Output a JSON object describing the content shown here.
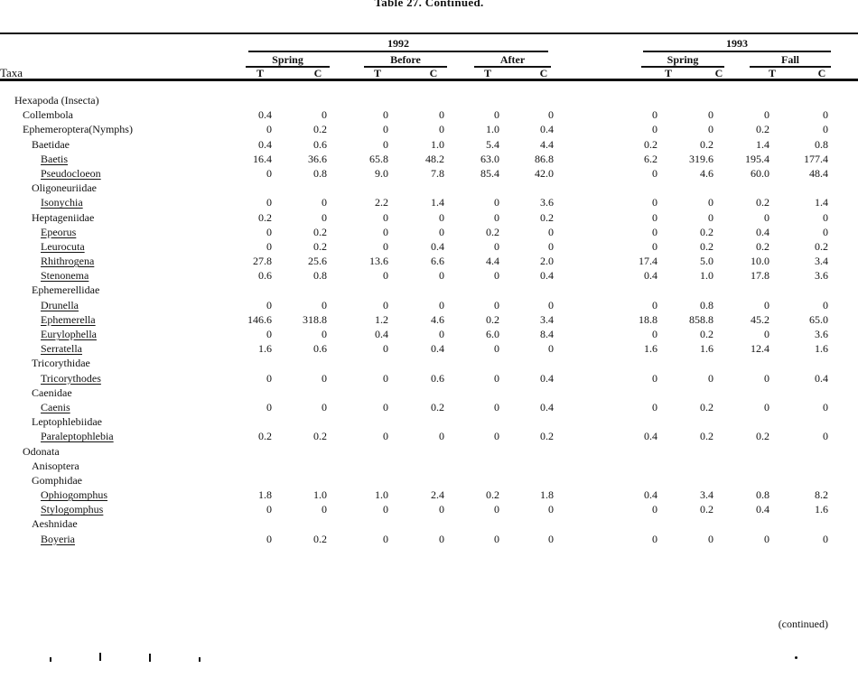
{
  "title": "Table 27.  Continued.",
  "footer_note": "(continued)",
  "colors": {
    "text": "#111111",
    "background": "#ffffff",
    "rule": "#111111"
  },
  "header": {
    "taxa_label": "Taxa",
    "years": [
      {
        "label": "1992",
        "seasons": [
          {
            "label": "Spring"
          },
          {
            "label": "Before"
          },
          {
            "label": "After"
          }
        ]
      },
      {
        "label": "1993",
        "seasons": [
          {
            "label": "Spring"
          },
          {
            "label": "Fall"
          }
        ]
      }
    ],
    "subcol_label_t": "T",
    "subcol_label_c": "C"
  },
  "table": {
    "rows": [
      {
        "name": "Hexapoda (Insecta)",
        "indent": 0,
        "underline": false,
        "values": [
          "",
          "",
          "",
          "",
          "",
          "",
          "",
          "",
          "",
          ""
        ]
      },
      {
        "name": "Collembola",
        "indent": 1,
        "underline": false,
        "values": [
          "0.4",
          "0",
          "0",
          "0",
          "0",
          "0",
          "0",
          "0",
          "0",
          "0"
        ]
      },
      {
        "name": "Ephemeroptera(Nymphs)",
        "indent": 1,
        "underline": false,
        "values": [
          "0",
          "0.2",
          "0",
          "0",
          "1.0",
          "0.4",
          "0",
          "0",
          "0.2",
          "0"
        ]
      },
      {
        "name": "Baetidae",
        "indent": 2,
        "underline": false,
        "values": [
          "0.4",
          "0.6",
          "0",
          "1.0",
          "5.4",
          "4.4",
          "0.2",
          "0.2",
          "1.4",
          "0.8"
        ]
      },
      {
        "name": "Baetis",
        "indent": 3,
        "underline": true,
        "values": [
          "16.4",
          "36.6",
          "65.8",
          "48.2",
          "63.0",
          "86.8",
          "6.2",
          "319.6",
          "195.4",
          "177.4"
        ]
      },
      {
        "name": "Pseudocloeon",
        "indent": 3,
        "underline": true,
        "values": [
          "0",
          "0.8",
          "9.0",
          "7.8",
          "85.4",
          "42.0",
          "0",
          "4.6",
          "60.0",
          "48.4"
        ]
      },
      {
        "name": "Oligoneuriidae",
        "indent": 2,
        "underline": false,
        "values": [
          "",
          "",
          "",
          "",
          "",
          "",
          "",
          "",
          "",
          ""
        ]
      },
      {
        "name": "Isonychia",
        "indent": 3,
        "underline": true,
        "values": [
          "0",
          "0",
          "2.2",
          "1.4",
          "0",
          "3.6",
          "0",
          "0",
          "0.2",
          "1.4"
        ]
      },
      {
        "name": "Heptageniidae",
        "indent": 2,
        "underline": false,
        "values": [
          "0.2",
          "0",
          "0",
          "0",
          "0",
          "0.2",
          "0",
          "0",
          "0",
          "0"
        ]
      },
      {
        "name": "Epeorus",
        "indent": 3,
        "underline": true,
        "values": [
          "0",
          "0.2",
          "0",
          "0",
          "0.2",
          "0",
          "0",
          "0.2",
          "0.4",
          "0"
        ]
      },
      {
        "name": "Leurocuta",
        "indent": 3,
        "underline": true,
        "values": [
          "0",
          "0.2",
          "0",
          "0.4",
          "0",
          "0",
          "0",
          "0.2",
          "0.2",
          "0.2"
        ]
      },
      {
        "name": "Rhithrogena",
        "indent": 3,
        "underline": true,
        "values": [
          "27.8",
          "25.6",
          "13.6",
          "6.6",
          "4.4",
          "2.0",
          "17.4",
          "5.0",
          "10.0",
          "3.4"
        ]
      },
      {
        "name": "Stenonema",
        "indent": 3,
        "underline": true,
        "values": [
          "0.6",
          "0.8",
          "0",
          "0",
          "0",
          "0.4",
          "0.4",
          "1.0",
          "17.8",
          "3.6"
        ]
      },
      {
        "name": "Ephemerellidae",
        "indent": 2,
        "underline": false,
        "values": [
          "",
          "",
          "",
          "",
          "",
          "",
          "",
          "",
          "",
          ""
        ]
      },
      {
        "name": "Drunella",
        "indent": 3,
        "underline": true,
        "values": [
          "0",
          "0",
          "0",
          "0",
          "0",
          "0",
          "0",
          "0.8",
          "0",
          "0"
        ]
      },
      {
        "name": "Ephemerella",
        "indent": 3,
        "underline": true,
        "values": [
          "146.6",
          "318.8",
          "1.2",
          "4.6",
          "0.2",
          "3.4",
          "18.8",
          "858.8",
          "45.2",
          "65.0"
        ]
      },
      {
        "name": "Eurylophella",
        "indent": 3,
        "underline": true,
        "values": [
          "0",
          "0",
          "0.4",
          "0",
          "6.0",
          "8.4",
          "0",
          "0.2",
          "0",
          "3.6"
        ]
      },
      {
        "name": "Serratella",
        "indent": 3,
        "underline": true,
        "values": [
          "1.6",
          "0.6",
          "0",
          "0.4",
          "0",
          "0",
          "1.6",
          "1.6",
          "12.4",
          "1.6"
        ]
      },
      {
        "name": "Tricorythidae",
        "indent": 2,
        "underline": false,
        "values": [
          "",
          "",
          "",
          "",
          "",
          "",
          "",
          "",
          "",
          ""
        ]
      },
      {
        "name": "Tricorythodes",
        "indent": 3,
        "underline": true,
        "values": [
          "0",
          "0",
          "0",
          "0.6",
          "0",
          "0.4",
          "0",
          "0",
          "0",
          "0.4"
        ]
      },
      {
        "name": "Caenidae",
        "indent": 2,
        "underline": false,
        "values": [
          "",
          "",
          "",
          "",
          "",
          "",
          "",
          "",
          "",
          ""
        ]
      },
      {
        "name": "Caenis",
        "indent": 3,
        "underline": true,
        "values": [
          "0",
          "0",
          "0",
          "0.2",
          "0",
          "0.4",
          "0",
          "0.2",
          "0",
          "0"
        ]
      },
      {
        "name": "Leptophlebiidae",
        "indent": 2,
        "underline": false,
        "values": [
          "",
          "",
          "",
          "",
          "",
          "",
          "",
          "",
          "",
          ""
        ]
      },
      {
        "name": "Paraleptophlebia",
        "indent": 3,
        "underline": true,
        "values": [
          "0.2",
          "0.2",
          "0",
          "0",
          "0",
          "0.2",
          "0.4",
          "0.2",
          "0.2",
          "0"
        ]
      },
      {
        "name": "Odonata",
        "indent": 1,
        "underline": false,
        "values": [
          "",
          "",
          "",
          "",
          "",
          "",
          "",
          "",
          "",
          ""
        ]
      },
      {
        "name": "Anisoptera",
        "indent": 2,
        "underline": false,
        "values": [
          "",
          "",
          "",
          "",
          "",
          "",
          "",
          "",
          "",
          ""
        ]
      },
      {
        "name": "Gomphidae",
        "indent": 2,
        "underline": false,
        "values": [
          "",
          "",
          "",
          "",
          "",
          "",
          "",
          "",
          "",
          ""
        ]
      },
      {
        "name": "Ophiogomphus",
        "indent": 3,
        "underline": true,
        "values": [
          "1.8",
          "1.0",
          "1.0",
          "2.4",
          "0.2",
          "1.8",
          "0.4",
          "3.4",
          "0.8",
          "8.2"
        ]
      },
      {
        "name": "Stylogomphus",
        "indent": 3,
        "underline": true,
        "values": [
          "0",
          "0",
          "0",
          "0",
          "0",
          "0",
          "0",
          "0.2",
          "0.4",
          "1.6"
        ]
      },
      {
        "name": "Aeshnidae",
        "indent": 2,
        "underline": false,
        "values": [
          "",
          "",
          "",
          "",
          "",
          "",
          "",
          "",
          "",
          ""
        ]
      },
      {
        "name": "Boyeria",
        "indent": 3,
        "underline": true,
        "values": [
          "0",
          "0.2",
          "0",
          "0",
          "0",
          "0",
          "0",
          "0",
          "0",
          "0"
        ]
      }
    ]
  }
}
